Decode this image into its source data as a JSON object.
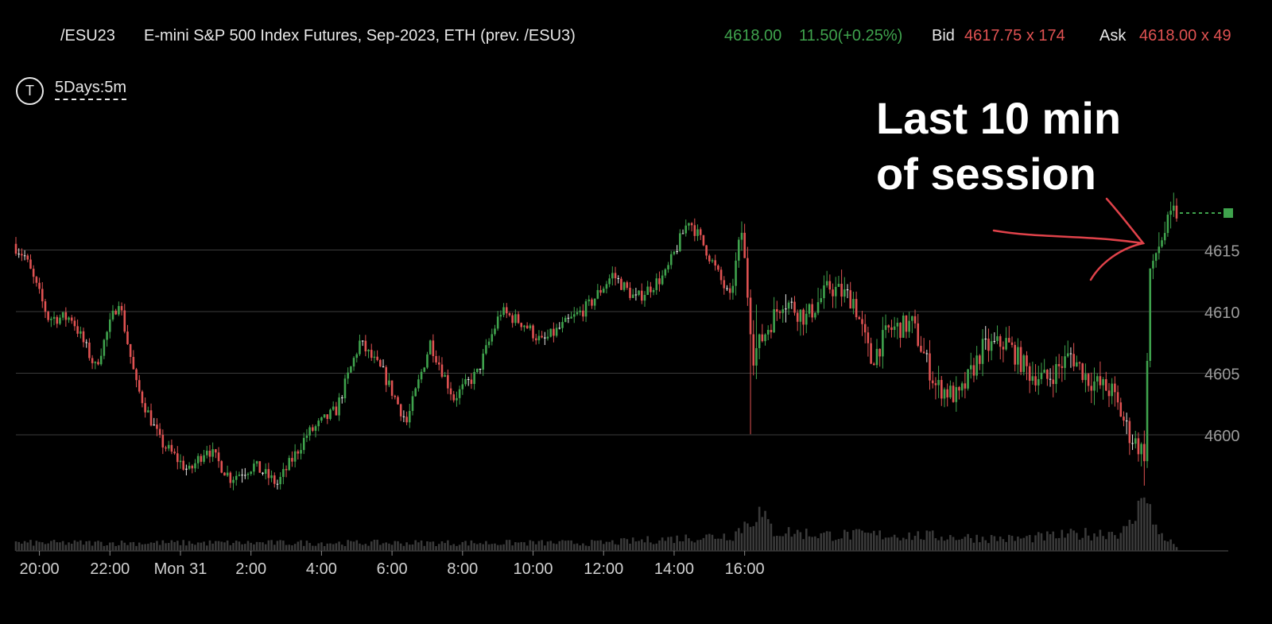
{
  "header": {
    "symbol": "/ESU23",
    "description": "E-mini S&P 500 Index Futures, Sep-2023, ETH (prev. /ESU3)",
    "last": "4618.00",
    "change": "11.50(+0.25%)",
    "bid_label": "Bid",
    "bid_value": "4617.75 x 174",
    "ask_label": "Ask",
    "ask_value": "4618.00 x 49"
  },
  "timeframe": {
    "icon": "t-circle-icon",
    "icon_text": "T",
    "label": "5Days:5m"
  },
  "annotation": {
    "text": "Last 10 min\nof session"
  },
  "colors": {
    "up": "#3fa34d",
    "down": "#e05252",
    "doji": "#e8e8e8",
    "volume": "#3a3a3a",
    "grid": "#3c3c3c",
    "arrow": "#e0424a"
  },
  "chart_data": {
    "type": "candlestick",
    "ylim": [
      4594,
      4624
    ],
    "yticks": [
      4600,
      4605,
      4610,
      4615
    ],
    "xticks": [
      "20:00",
      "22:00",
      "Mon 31",
      "2:00",
      "4:00",
      "6:00",
      "8:00",
      "10:00",
      "12:00",
      "14:00",
      "16:00"
    ],
    "last_price": 4618.0,
    "anchors": [
      [
        0,
        4615.5
      ],
      [
        4,
        4614.5
      ],
      [
        12,
        4609.5
      ],
      [
        20,
        4609.5
      ],
      [
        28,
        4605.5
      ],
      [
        36,
        4611
      ],
      [
        42,
        4604
      ],
      [
        50,
        4599.5
      ],
      [
        60,
        4597
      ],
      [
        66,
        4599
      ],
      [
        74,
        4596.5
      ],
      [
        82,
        4597.5
      ],
      [
        90,
        4596
      ],
      [
        100,
        4600
      ],
      [
        110,
        4602
      ],
      [
        118,
        4607.5
      ],
      [
        126,
        4605
      ],
      [
        134,
        4601
      ],
      [
        142,
        4607.5
      ],
      [
        150,
        4603
      ],
      [
        158,
        4605
      ],
      [
        166,
        4610
      ],
      [
        174,
        4609
      ],
      [
        180,
        4607.5
      ],
      [
        188,
        4609
      ],
      [
        196,
        4610.5
      ],
      [
        204,
        4613
      ],
      [
        212,
        4611
      ],
      [
        222,
        4613
      ],
      [
        230,
        4617.5
      ],
      [
        236,
        4615
      ],
      [
        244,
        4611
      ],
      [
        248,
        4616.5
      ],
      [
        252,
        4606.5
      ],
      [
        262,
        4611
      ],
      [
        270,
        4609.5
      ],
      [
        278,
        4612
      ],
      [
        286,
        4611
      ],
      [
        292,
        4606
      ],
      [
        298,
        4608.5
      ],
      [
        306,
        4609
      ],
      [
        314,
        4604
      ],
      [
        322,
        4603
      ],
      [
        330,
        4607
      ],
      [
        338,
        4607.5
      ],
      [
        346,
        4605
      ],
      [
        352,
        4604.5
      ],
      [
        360,
        4606.5
      ],
      [
        366,
        4604.5
      ],
      [
        374,
        4603.5
      ],
      [
        380,
        4600
      ],
      [
        385,
        4598.5
      ],
      [
        387,
        4613.5
      ],
      [
        391,
        4616
      ],
      [
        395,
        4618
      ]
    ],
    "volume_anchors": [
      [
        0,
        1
      ],
      [
        200,
        1
      ],
      [
        244,
        2
      ],
      [
        250,
        4
      ],
      [
        252,
        5
      ],
      [
        258,
        2.5
      ],
      [
        276,
        2
      ],
      [
        300,
        2
      ],
      [
        340,
        1.5
      ],
      [
        378,
        2.5
      ],
      [
        382,
        5
      ],
      [
        384,
        10
      ],
      [
        387,
        3
      ],
      [
        395,
        0.5
      ]
    ]
  }
}
